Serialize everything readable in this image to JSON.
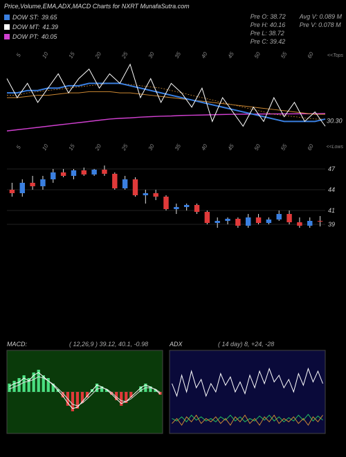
{
  "title": "Price,Volume,EMA,ADX,MACD Charts for NXRT MunafaSutra.com",
  "legend": [
    {
      "label": "DOW ST:",
      "value": "39.65",
      "color": "#3a7fe0"
    },
    {
      "label": "DOW MT:",
      "value": "41.39",
      "color": "#ffffff"
    },
    {
      "label": "DOW PT:",
      "value": "40.05",
      "color": "#d040d0"
    }
  ],
  "stats": {
    "pre_o": "Pre  O: 38.72",
    "pre_h": "Pre  H: 40.16",
    "pre_l": "Pre  L: 38.72",
    "pre_c": "Pre  C: 39.42",
    "avg_v": "Avg V: 0.089 M",
    "pre_v": "Pre  V: 0.078 M"
  },
  "top_chart": {
    "right_label_top": "<<Tops",
    "right_label_bot": "<<Lows",
    "last_price": "30.30",
    "ticks": [
      "5",
      "10",
      "15",
      "20",
      "25",
      "30",
      "35",
      "40",
      "45",
      "50",
      "55",
      "60"
    ],
    "lines": {
      "blue": {
        "color": "#3a7fe0",
        "width": 2,
        "points": [
          42,
          42,
          43,
          43,
          44,
          44,
          45,
          45,
          46,
          46,
          46,
          46,
          45,
          44,
          43,
          42,
          41,
          40,
          39,
          38,
          37,
          36,
          35,
          34,
          33,
          32,
          31,
          30,
          30,
          30,
          30,
          31
        ]
      },
      "orange": {
        "color": "#cc8833",
        "width": 1,
        "points": [
          40,
          40,
          40.5,
          41,
          41,
          41.5,
          42,
          42,
          42.5,
          42.5,
          42.5,
          42,
          42,
          41.5,
          41,
          40.5,
          40,
          39.5,
          39,
          38.5,
          38,
          37.5,
          37,
          36.5,
          36,
          35.5,
          35,
          34.5,
          34,
          33.5,
          33,
          33
        ]
      },
      "pink": {
        "color": "#d040d0",
        "width": 1.5,
        "points": [
          26,
          26.5,
          27,
          27.5,
          28,
          28.5,
          29,
          29.5,
          30,
          30.5,
          31,
          31.3,
          31.5,
          31.8,
          32,
          32.2,
          32.3,
          32.5,
          32.6,
          32.7,
          32.8,
          32.9,
          33,
          33.05,
          33.1,
          33.12,
          33.15,
          33.17,
          33.2,
          33.22,
          33.25,
          33.3
        ]
      },
      "white": {
        "color": "#ffffff",
        "width": 1,
        "points": [
          48,
          40,
          46,
          38,
          44,
          50,
          42,
          48,
          52,
          44,
          50,
          46,
          54,
          40,
          48,
          38,
          46,
          42,
          36,
          44,
          30,
          40,
          34,
          28,
          36,
          30,
          40,
          32,
          38,
          30,
          34,
          28
        ]
      },
      "dash": {
        "color": "#cc8833",
        "width": 0.8,
        "dash": "2,2",
        "points": [
          41,
          41,
          42,
          42.5,
          43,
          43.5,
          44,
          44.5,
          45,
          45.5,
          46,
          46,
          45.5,
          45,
          44.5,
          44,
          43,
          42,
          41,
          40,
          39,
          38,
          37,
          36,
          35,
          34,
          33,
          32.5,
          32,
          31.5,
          31,
          31
        ]
      }
    }
  },
  "candle_chart": {
    "hlines": [
      47,
      44,
      41,
      39
    ],
    "hlabels": [
      "47",
      "44",
      "41",
      "39"
    ],
    "up_color": "#3a7fe0",
    "down_color": "#e03a3a",
    "wick_color": "#e0e0e0",
    "candles": [
      {
        "o": 44,
        "h": 45,
        "l": 43,
        "c": 43.5,
        "down": true
      },
      {
        "o": 43.5,
        "h": 45.5,
        "l": 43,
        "c": 45,
        "down": false
      },
      {
        "o": 45,
        "h": 46,
        "l": 44,
        "c": 44.5,
        "down": true
      },
      {
        "o": 44.5,
        "h": 46,
        "l": 44,
        "c": 45.5,
        "down": false
      },
      {
        "o": 45.5,
        "h": 47,
        "l": 45,
        "c": 46.5,
        "down": false
      },
      {
        "o": 46.5,
        "h": 47,
        "l": 45.8,
        "c": 46,
        "down": true
      },
      {
        "o": 46,
        "h": 47,
        "l": 45.5,
        "c": 46.8,
        "down": false
      },
      {
        "o": 46.8,
        "h": 47.2,
        "l": 46,
        "c": 46.2,
        "down": true
      },
      {
        "o": 46.2,
        "h": 47,
        "l": 46,
        "c": 46.9,
        "down": false
      },
      {
        "o": 46.9,
        "h": 47.5,
        "l": 46,
        "c": 46.3,
        "down": true
      },
      {
        "o": 46.3,
        "h": 46.5,
        "l": 44,
        "c": 44.2,
        "down": true
      },
      {
        "o": 44.2,
        "h": 46,
        "l": 44,
        "c": 45.5,
        "down": false
      },
      {
        "o": 45.5,
        "h": 45.8,
        "l": 43,
        "c": 43.2,
        "down": true
      },
      {
        "o": 43.2,
        "h": 44,
        "l": 42,
        "c": 43.5,
        "down": false
      },
      {
        "o": 43.5,
        "h": 44,
        "l": 42.5,
        "c": 43,
        "down": true
      },
      {
        "o": 43,
        "h": 43.2,
        "l": 41,
        "c": 41.2,
        "down": true
      },
      {
        "o": 41.2,
        "h": 42,
        "l": 40.5,
        "c": 41.5,
        "down": false
      },
      {
        "o": 41.5,
        "h": 42,
        "l": 41,
        "c": 41.8,
        "down": false
      },
      {
        "o": 41.8,
        "h": 42,
        "l": 40.5,
        "c": 40.8,
        "down": true
      },
      {
        "o": 40.8,
        "h": 41,
        "l": 39,
        "c": 39.2,
        "down": true
      },
      {
        "o": 39.2,
        "h": 40,
        "l": 38.5,
        "c": 39.5,
        "down": false
      },
      {
        "o": 39.5,
        "h": 40,
        "l": 39,
        "c": 39.8,
        "down": false
      },
      {
        "o": 39.8,
        "h": 40,
        "l": 38.5,
        "c": 38.8,
        "down": true
      },
      {
        "o": 38.8,
        "h": 40.5,
        "l": 38.5,
        "c": 40,
        "down": false
      },
      {
        "o": 40,
        "h": 40.5,
        "l": 39,
        "c": 39.2,
        "down": true
      },
      {
        "o": 39.2,
        "h": 40,
        "l": 39,
        "c": 39.7,
        "down": false
      },
      {
        "o": 39.7,
        "h": 41,
        "l": 39.5,
        "c": 40.5,
        "down": false
      },
      {
        "o": 40.5,
        "h": 41,
        "l": 39,
        "c": 39.3,
        "down": true
      },
      {
        "o": 39.3,
        "h": 40,
        "l": 38.5,
        "c": 38.8,
        "down": true
      },
      {
        "o": 38.8,
        "h": 40,
        "l": 38.5,
        "c": 39.5,
        "down": false
      },
      {
        "o": 39.5,
        "h": 40.2,
        "l": 38.7,
        "c": 39.4,
        "down": true
      }
    ]
  },
  "macd": {
    "label": "MACD:",
    "params": "( 12,26,9 ) 39.12,  40.1,  -0.98",
    "bg": "#0a3a0a",
    "hist_up_color": "#4ade80",
    "hist_down_color": "#e03a3a",
    "line1_color": "#ffffff",
    "line2_color": "#e0e0e0",
    "hist": [
      0.3,
      0.4,
      0.5,
      0.6,
      0.5,
      0.7,
      0.8,
      0.6,
      0.5,
      0.3,
      0.1,
      -0.2,
      -0.5,
      -0.7,
      -0.6,
      -0.4,
      -0.2,
      0.1,
      0.3,
      0.2,
      0.1,
      -0.1,
      -0.3,
      -0.5,
      -0.4,
      -0.2,
      0.0,
      0.2,
      0.3,
      0.2,
      0.1,
      -0.1
    ],
    "line1": [
      0.2,
      0.3,
      0.35,
      0.5,
      0.4,
      0.6,
      0.7,
      0.55,
      0.4,
      0.25,
      0.05,
      -0.15,
      -0.4,
      -0.6,
      -0.55,
      -0.35,
      -0.15,
      0.05,
      0.25,
      0.18,
      0.08,
      -0.08,
      -0.25,
      -0.42,
      -0.35,
      -0.18,
      -0.02,
      0.15,
      0.25,
      0.18,
      0.08,
      -0.08
    ],
    "line2": [
      0.1,
      0.18,
      0.25,
      0.35,
      0.38,
      0.45,
      0.55,
      0.5,
      0.4,
      0.28,
      0.12,
      -0.05,
      -0.25,
      -0.45,
      -0.5,
      -0.4,
      -0.25,
      -0.08,
      0.1,
      0.15,
      0.1,
      -0.02,
      -0.18,
      -0.32,
      -0.35,
      -0.25,
      -0.1,
      0.05,
      0.15,
      0.15,
      0.1,
      -0.02
    ]
  },
  "adx": {
    "label": "ADX",
    "params": "( 14   day) 8,  +24,  -28",
    "bg": "#0a0a3a",
    "white_color": "#ffffff",
    "green_color": "#20c060",
    "orange_color": "#cc8833",
    "white": [
      60,
      45,
      70,
      50,
      75,
      55,
      65,
      45,
      60,
      50,
      72,
      58,
      68,
      50,
      62,
      48,
      70,
      55,
      75,
      60,
      78,
      62,
      70,
      55,
      65,
      50,
      72,
      58,
      78,
      62,
      75,
      60
    ],
    "green": [
      18,
      15,
      20,
      14,
      22,
      16,
      20,
      15,
      18,
      14,
      20,
      16,
      22,
      15,
      20,
      14,
      18,
      15,
      21,
      16,
      22,
      15,
      20,
      14,
      19,
      15,
      22,
      16,
      23,
      15,
      21,
      16
    ],
    "orange": [
      12,
      18,
      10,
      20,
      14,
      22,
      12,
      18,
      14,
      20,
      12,
      18,
      10,
      20,
      14,
      22,
      12,
      18,
      10,
      20,
      14,
      22,
      12,
      18,
      14,
      20,
      12,
      18,
      10,
      20,
      14,
      22
    ]
  }
}
